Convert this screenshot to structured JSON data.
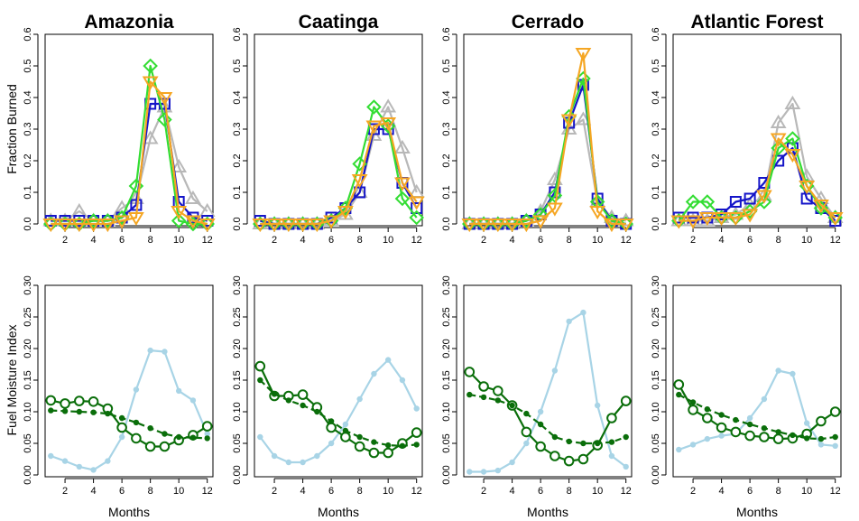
{
  "chart_data": [
    {
      "type": "line",
      "title": "Amazonia",
      "xlabel": "",
      "ylabel": "Fraction Burned",
      "x": [
        1,
        2,
        3,
        4,
        5,
        6,
        7,
        8,
        9,
        10,
        11,
        12
      ],
      "xticks": [
        2,
        4,
        6,
        8,
        10,
        12
      ],
      "yticks": [
        0.0,
        0.1,
        0.2,
        0.3,
        0.4,
        0.5,
        0.6
      ],
      "ytick_labels": [
        "0.0",
        "0.1",
        "0.2",
        "0.3",
        "0.4",
        "0.5",
        "0.6"
      ],
      "ylim": [
        0,
        0.6
      ],
      "series": [
        {
          "color": "#b8b8b8",
          "marker": "triangle-up",
          "values": [
            0.01,
            0.01,
            0.04,
            0.01,
            0.01,
            0.05,
            0.08,
            0.27,
            0.37,
            0.18,
            0.08,
            0.04
          ]
        },
        {
          "color": "#1515c8",
          "marker": "square",
          "values": [
            0.01,
            0.01,
            0.01,
            0.01,
            0.01,
            0.02,
            0.06,
            0.38,
            0.38,
            0.07,
            0.02,
            0.01
          ]
        },
        {
          "color": "#33dd33",
          "marker": "diamond",
          "values": [
            0.0,
            0.0,
            0.0,
            0.01,
            0.01,
            0.02,
            0.12,
            0.5,
            0.33,
            0.01,
            0.0,
            0.0
          ]
        },
        {
          "color": "#f5a623",
          "marker": "triangle-down",
          "values": [
            0.0,
            0.0,
            0.0,
            0.0,
            0.0,
            0.01,
            0.02,
            0.45,
            0.4,
            0.04,
            0.01,
            0.0
          ]
        }
      ]
    },
    {
      "type": "line",
      "title": "Caatinga",
      "xlabel": "",
      "ylabel": "",
      "x": [
        1,
        2,
        3,
        4,
        5,
        6,
        7,
        8,
        9,
        10,
        11,
        12
      ],
      "xticks": [
        2,
        4,
        6,
        8,
        10,
        12
      ],
      "yticks": [
        0.0,
        0.1,
        0.2,
        0.3,
        0.4,
        0.5,
        0.6
      ],
      "ytick_labels": [
        "0.0",
        "0.1",
        "0.2",
        "0.3",
        "0.4",
        "0.5",
        "0.6"
      ],
      "ylim": [
        0,
        0.6
      ],
      "series": [
        {
          "color": "#b8b8b8",
          "marker": "triangle-up",
          "values": [
            0.0,
            0.0,
            0.0,
            0.0,
            0.0,
            0.01,
            0.03,
            0.1,
            0.28,
            0.37,
            0.24,
            0.1
          ]
        },
        {
          "color": "#1515c8",
          "marker": "square",
          "values": [
            0.01,
            0.0,
            0.0,
            0.0,
            0.0,
            0.02,
            0.05,
            0.1,
            0.3,
            0.3,
            0.13,
            0.05
          ]
        },
        {
          "color": "#33dd33",
          "marker": "diamond",
          "values": [
            0.0,
            0.0,
            0.0,
            0.0,
            0.0,
            0.01,
            0.05,
            0.19,
            0.37,
            0.31,
            0.08,
            0.02
          ]
        },
        {
          "color": "#f5a623",
          "marker": "triangle-down",
          "values": [
            0.0,
            0.0,
            0.0,
            0.0,
            0.0,
            0.01,
            0.04,
            0.14,
            0.31,
            0.32,
            0.13,
            0.07
          ]
        }
      ]
    },
    {
      "type": "line",
      "title": "Cerrado",
      "xlabel": "",
      "ylabel": "",
      "x": [
        1,
        2,
        3,
        4,
        5,
        6,
        7,
        8,
        9,
        10,
        11,
        12
      ],
      "xticks": [
        2,
        4,
        6,
        8,
        10,
        12
      ],
      "yticks": [
        0.0,
        0.1,
        0.2,
        0.3,
        0.4,
        0.5,
        0.6
      ],
      "ytick_labels": [
        "0.0",
        "0.1",
        "0.2",
        "0.3",
        "0.4",
        "0.5",
        "0.6"
      ],
      "ylim": [
        0,
        0.6
      ],
      "series": [
        {
          "color": "#b8b8b8",
          "marker": "triangle-up",
          "values": [
            0.0,
            0.0,
            0.0,
            0.0,
            0.01,
            0.04,
            0.14,
            0.3,
            0.33,
            0.07,
            0.02,
            0.01
          ]
        },
        {
          "color": "#1515c8",
          "marker": "square",
          "values": [
            0.0,
            0.0,
            0.0,
            0.0,
            0.01,
            0.03,
            0.1,
            0.32,
            0.44,
            0.08,
            0.01,
            0.0
          ]
        },
        {
          "color": "#33dd33",
          "marker": "diamond",
          "values": [
            0.0,
            0.0,
            0.0,
            0.0,
            0.01,
            0.03,
            0.09,
            0.34,
            0.46,
            0.07,
            0.01,
            0.0
          ]
        },
        {
          "color": "#f5a623",
          "marker": "triangle-down",
          "values": [
            0.0,
            0.0,
            0.0,
            0.0,
            0.0,
            0.01,
            0.05,
            0.33,
            0.54,
            0.04,
            0.0,
            0.0
          ]
        }
      ]
    },
    {
      "type": "line",
      "title": "Atlantic Forest",
      "xlabel": "",
      "ylabel": "",
      "x": [
        1,
        2,
        3,
        4,
        5,
        6,
        7,
        8,
        9,
        10,
        11,
        12
      ],
      "xticks": [
        2,
        4,
        6,
        8,
        10,
        12
      ],
      "yticks": [
        0.0,
        0.1,
        0.2,
        0.3,
        0.4,
        0.5,
        0.6
      ],
      "ytick_labels": [
        "0.0",
        "0.1",
        "0.2",
        "0.3",
        "0.4",
        "0.5",
        "0.6"
      ],
      "ylim": [
        0,
        0.6
      ],
      "series": [
        {
          "color": "#b8b8b8",
          "marker": "triangle-up",
          "values": [
            0.01,
            0.01,
            0.01,
            0.02,
            0.03,
            0.06,
            0.09,
            0.32,
            0.38,
            0.15,
            0.08,
            0.02
          ]
        },
        {
          "color": "#1515c8",
          "marker": "square",
          "values": [
            0.02,
            0.02,
            0.02,
            0.03,
            0.07,
            0.08,
            0.13,
            0.2,
            0.24,
            0.08,
            0.05,
            0.01
          ]
        },
        {
          "color": "#33dd33",
          "marker": "diamond",
          "values": [
            0.01,
            0.07,
            0.07,
            0.02,
            0.02,
            0.04,
            0.07,
            0.24,
            0.27,
            0.12,
            0.05,
            0.02
          ]
        },
        {
          "color": "#f5a623",
          "marker": "triangle-down",
          "values": [
            0.01,
            0.01,
            0.02,
            0.02,
            0.02,
            0.03,
            0.09,
            0.27,
            0.22,
            0.12,
            0.06,
            0.02
          ]
        }
      ]
    },
    {
      "type": "line",
      "title": "",
      "xlabel": "Months",
      "ylabel": "Fuel Moisture Index",
      "x": [
        1,
        2,
        3,
        4,
        5,
        6,
        7,
        8,
        9,
        10,
        11,
        12
      ],
      "xticks": [
        2,
        4,
        6,
        8,
        10,
        12
      ],
      "yticks": [
        0.0,
        0.05,
        0.1,
        0.15,
        0.2,
        0.25,
        0.3
      ],
      "ytick_labels": [
        "0.00",
        "0.05",
        "0.10",
        "0.15",
        "0.20",
        "0.25",
        "0.30"
      ],
      "ylim": [
        0,
        0.3
      ],
      "series": [
        {
          "color": "#a8d4e6",
          "marker": "dot",
          "values": [
            0.03,
            0.022,
            0.013,
            0.008,
            0.022,
            0.06,
            0.135,
            0.197,
            0.195,
            0.133,
            0.118,
            0.065
          ]
        },
        {
          "color": "#0a6e0a",
          "marker": "open-circle",
          "values": [
            0.118,
            0.113,
            0.117,
            0.116,
            0.105,
            0.075,
            0.058,
            0.045,
            0.045,
            0.055,
            0.063,
            0.077
          ]
        },
        {
          "color": "#0a6e0a",
          "marker": "dot",
          "dashed": true,
          "values": [
            0.102,
            0.101,
            0.1,
            0.099,
            0.097,
            0.09,
            0.083,
            0.074,
            0.065,
            0.06,
            0.059,
            0.058
          ]
        }
      ]
    },
    {
      "type": "line",
      "title": "",
      "xlabel": "Months",
      "ylabel": "",
      "x": [
        1,
        2,
        3,
        4,
        5,
        6,
        7,
        8,
        9,
        10,
        11,
        12
      ],
      "xticks": [
        2,
        4,
        6,
        8,
        10,
        12
      ],
      "yticks": [
        0.0,
        0.05,
        0.1,
        0.15,
        0.2,
        0.25,
        0.3
      ],
      "ytick_labels": [
        "0.00",
        "0.05",
        "0.10",
        "0.15",
        "0.20",
        "0.25",
        "0.30"
      ],
      "ylim": [
        0,
        0.3
      ],
      "series": [
        {
          "color": "#a8d4e6",
          "marker": "dot",
          "values": [
            0.06,
            0.03,
            0.02,
            0.02,
            0.03,
            0.05,
            0.08,
            0.12,
            0.16,
            0.182,
            0.15,
            0.105
          ]
        },
        {
          "color": "#0a6e0a",
          "marker": "open-circle",
          "values": [
            0.172,
            0.125,
            0.125,
            0.127,
            0.107,
            0.075,
            0.06,
            0.045,
            0.035,
            0.035,
            0.05,
            0.067
          ]
        },
        {
          "color": "#0a6e0a",
          "marker": "dot",
          "dashed": true,
          "values": [
            0.15,
            0.128,
            0.118,
            0.11,
            0.1,
            0.085,
            0.07,
            0.06,
            0.052,
            0.047,
            0.046,
            0.048
          ]
        }
      ]
    },
    {
      "type": "line",
      "title": "",
      "xlabel": "Months",
      "ylabel": "",
      "x": [
        1,
        2,
        3,
        4,
        5,
        6,
        7,
        8,
        9,
        10,
        11,
        12
      ],
      "xticks": [
        2,
        4,
        6,
        8,
        10,
        12
      ],
      "yticks": [
        0.0,
        0.05,
        0.1,
        0.15,
        0.2,
        0.25,
        0.3
      ],
      "ytick_labels": [
        "0.00",
        "0.05",
        "0.10",
        "0.15",
        "0.20",
        "0.25",
        "0.30"
      ],
      "ylim": [
        0,
        0.3
      ],
      "series": [
        {
          "color": "#a8d4e6",
          "marker": "dot",
          "values": [
            0.005,
            0.005,
            0.007,
            0.02,
            0.05,
            0.1,
            0.165,
            0.243,
            0.257,
            0.11,
            0.03,
            0.013
          ]
        },
        {
          "color": "#0a6e0a",
          "marker": "open-circle",
          "values": [
            0.163,
            0.14,
            0.133,
            0.11,
            0.068,
            0.045,
            0.03,
            0.022,
            0.025,
            0.047,
            0.09,
            0.117
          ]
        },
        {
          "color": "#0a6e0a",
          "marker": "dot",
          "dashed": true,
          "values": [
            0.127,
            0.123,
            0.118,
            0.11,
            0.097,
            0.08,
            0.06,
            0.053,
            0.05,
            0.05,
            0.052,
            0.06
          ]
        }
      ]
    },
    {
      "type": "line",
      "title": "",
      "xlabel": "Months",
      "ylabel": "",
      "x": [
        1,
        2,
        3,
        4,
        5,
        6,
        7,
        8,
        9,
        10,
        11,
        12
      ],
      "xticks": [
        2,
        4,
        6,
        8,
        10,
        12
      ],
      "yticks": [
        0.0,
        0.05,
        0.1,
        0.15,
        0.2,
        0.25,
        0.3
      ],
      "ytick_labels": [
        "0.00",
        "0.05",
        "0.10",
        "0.15",
        "0.20",
        "0.25",
        "0.30"
      ],
      "ylim": [
        0,
        0.3
      ],
      "series": [
        {
          "color": "#a8d4e6",
          "marker": "dot",
          "values": [
            0.04,
            0.048,
            0.057,
            0.062,
            0.065,
            0.09,
            0.12,
            0.165,
            0.16,
            0.082,
            0.048,
            0.046
          ]
        },
        {
          "color": "#0a6e0a",
          "marker": "open-circle",
          "values": [
            0.143,
            0.103,
            0.09,
            0.075,
            0.068,
            0.062,
            0.06,
            0.057,
            0.058,
            0.065,
            0.085,
            0.1
          ]
        },
        {
          "color": "#0a6e0a",
          "marker": "dot",
          "dashed": true,
          "values": [
            0.127,
            0.115,
            0.104,
            0.095,
            0.087,
            0.08,
            0.074,
            0.068,
            0.063,
            0.058,
            0.057,
            0.06
          ]
        }
      ]
    }
  ]
}
